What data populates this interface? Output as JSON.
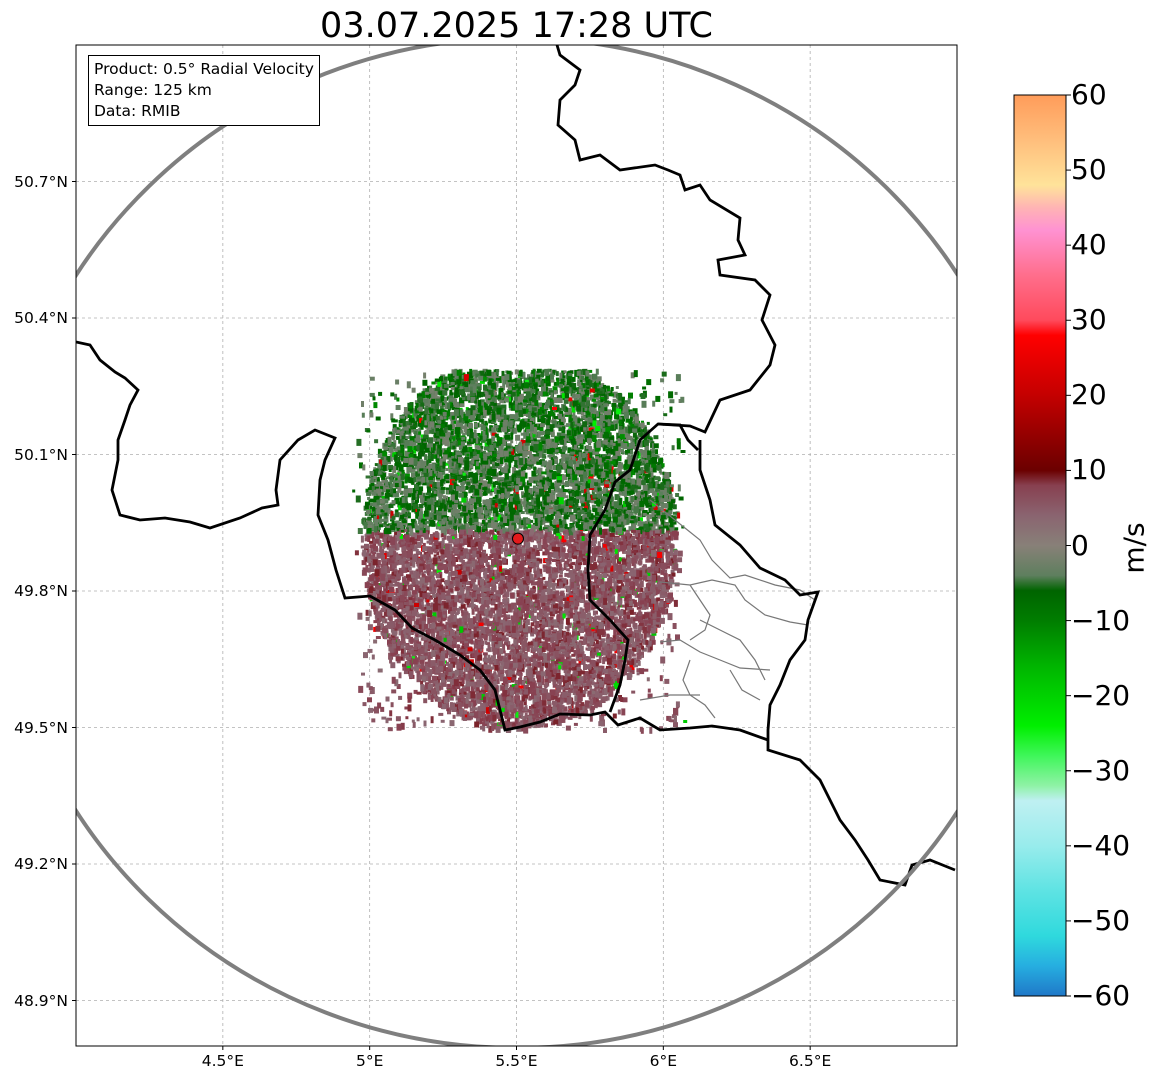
{
  "title": "03.07.2025 17:28 UTC",
  "info": {
    "product": "Product: 0.5° Radial Velocity",
    "range": "Range: 125 km",
    "source": "Data: RMIB"
  },
  "map_extent": {
    "lon": [
      4.0,
      7.0
    ],
    "lat": [
      48.8,
      51.0
    ]
  },
  "radar_site": {
    "lon": 5.505,
    "lat": 49.915,
    "marker_color": "#e31a1c"
  },
  "range_ring_km": 125,
  "lat_ticks": [
    "50.7°N",
    "50.4°N",
    "50.1°N",
    "49.8°N",
    "49.5°N",
    "49.2°N",
    "48.9°N"
  ],
  "lat_values": [
    50.7,
    50.4,
    50.1,
    49.8,
    49.5,
    49.2,
    48.9
  ],
  "lon_ticks": [
    "4.5°E",
    "5°E",
    "5.5°E",
    "6°E",
    "6.5°E"
  ],
  "lon_values": [
    4.5,
    5.0,
    5.5,
    6.0,
    6.5
  ],
  "colorbar": {
    "label": "m/s",
    "min": -60,
    "max": 60,
    "ticks": [
      "60",
      "50",
      "40",
      "30",
      "20",
      "10",
      "0",
      "−10",
      "−20",
      "−30",
      "−40",
      "−50",
      "−60"
    ],
    "tick_values": [
      60,
      50,
      40,
      30,
      20,
      10,
      0,
      -10,
      -20,
      -30,
      -40,
      -50,
      -60
    ],
    "stops": [
      {
        "v": -60,
        "c": "#1f78c8"
      },
      {
        "v": -56,
        "c": "#26aee0"
      },
      {
        "v": -52,
        "c": "#2fd9dd"
      },
      {
        "v": -46,
        "c": "#5ee3e3"
      },
      {
        "v": -40,
        "c": "#98ecec"
      },
      {
        "v": -34,
        "c": "#bff0f2"
      },
      {
        "v": -32,
        "c": "#8ff2a6"
      },
      {
        "v": -28,
        "c": "#3ff65a"
      },
      {
        "v": -24,
        "c": "#00ef00"
      },
      {
        "v": -16,
        "c": "#00b400"
      },
      {
        "v": -10,
        "c": "#007d00"
      },
      {
        "v": -6,
        "c": "#006400"
      },
      {
        "v": -4,
        "c": "#5e7f5e"
      },
      {
        "v": 0,
        "c": "#888078"
      },
      {
        "v": 4,
        "c": "#8a6470"
      },
      {
        "v": 8,
        "c": "#884050"
      },
      {
        "v": 10,
        "c": "#6b0000"
      },
      {
        "v": 20,
        "c": "#c40000"
      },
      {
        "v": 28,
        "c": "#ff0000"
      },
      {
        "v": 30,
        "c": "#ff4a5c"
      },
      {
        "v": 36,
        "c": "#ff6e8c"
      },
      {
        "v": 42,
        "c": "#ff92d2"
      },
      {
        "v": 45,
        "c": "#ffb4b4"
      },
      {
        "v": 48,
        "c": "#ffe39a"
      },
      {
        "v": 54,
        "c": "#ffbe7c"
      },
      {
        "v": 60,
        "c": "#ff9c5a"
      }
    ]
  }
}
